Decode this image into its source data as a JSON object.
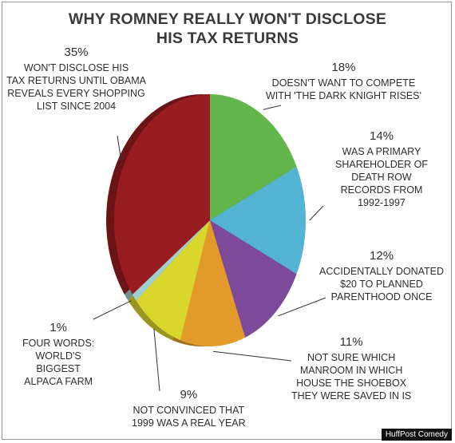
{
  "title_line1": "WHY ROMNEY REALLY WON'T DISCLOSE",
  "title_line2": "HIS TAX RETURNS",
  "credit": "HuffPost Comedy",
  "chart_data": {
    "type": "pie",
    "title": "WHY ROMNEY REALLY WON'T DISCLOSE HIS TAX RETURNS",
    "slices": [
      {
        "value": 18,
        "pct_label": "18%",
        "lines": [
          "DOESN'T WANT TO COMPETE",
          "WITH 'THE DARK KNIGHT RISES'"
        ],
        "color": "#62b54a"
      },
      {
        "value": 14,
        "pct_label": "14%",
        "lines": [
          "WAS A PRIMARY",
          "SHAREHOLDER OF",
          "DEATH ROW",
          "RECORDS FROM",
          "1992-1997"
        ],
        "color": "#52b3d3"
      },
      {
        "value": 12,
        "pct_label": "12%",
        "lines": [
          "ACCIDENTALLY DONATED",
          "$20 TO PLANNED",
          "PARENTHOOD ONCE"
        ],
        "color": "#7d4a9a"
      },
      {
        "value": 11,
        "pct_label": "11%",
        "lines": [
          "NOT SURE WHICH",
          "MANROOM IN WHICH",
          "HOUSE THE SHOEBOX",
          "THEY WERE SAVED IN IS"
        ],
        "color": "#e49a2b"
      },
      {
        "value": 9,
        "pct_label": "9%",
        "lines": [
          "NOT CONVINCED THAT",
          "1999 WAS A REAL YEAR"
        ],
        "color": "#d9d62c"
      },
      {
        "value": 1,
        "pct_label": "1%",
        "lines": [
          "FOUR WORDS:",
          "WORLD'S",
          "BIGGEST",
          "ALPACA FARM"
        ],
        "color": "#9fcfcf"
      },
      {
        "value": 35,
        "pct_label": "35%",
        "lines": [
          "WON'T DISCLOSE HIS",
          "TAX RETURNS UNTIL OBAMA",
          "REVEALS EVERY SHOPPING",
          "LIST SINCE 2004"
        ],
        "color": "#981c20"
      }
    ]
  }
}
